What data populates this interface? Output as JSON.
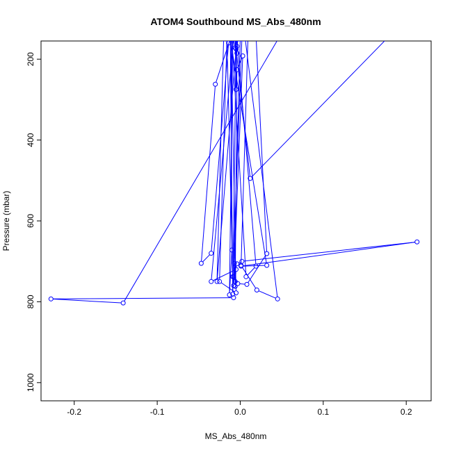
{
  "chart_data": {
    "type": "line",
    "title": "ATOM4 Southbound MS_Abs_480nm",
    "xlabel": "MS_Abs_480nm",
    "ylabel": "Pressure (mbar)",
    "xlim": [
      -0.24,
      0.23
    ],
    "ylim": [
      1045,
      155
    ],
    "y_reversed": true,
    "x_ticks": [
      -0.2,
      -0.1,
      0.0,
      0.1,
      0.2
    ],
    "x_tick_labels": [
      "-0.2",
      "-0.1",
      "0.0",
      "0.1",
      "0.2"
    ],
    "y_ticks": [
      200,
      400,
      600,
      800,
      1000
    ],
    "y_tick_labels": [
      "200",
      "400",
      "600",
      "800",
      "1000"
    ],
    "grid": false,
    "legend": "none",
    "series": [
      {
        "color": "#0000ff",
        "marker": "open-circle",
        "x": [
          -0.008,
          -0.228,
          -0.141,
          0.06,
          0.2,
          0.012,
          -0.005,
          -0.006,
          -0.012,
          -0.03,
          -0.047,
          -0.035,
          -0.014,
          -0.005,
          -0.01,
          0.007,
          0.019,
          -0.004,
          0.006,
          0.045,
          0.02,
          0.001,
          0.01,
          0.018,
          0.032,
          0.008,
          -0.003,
          -0.008,
          -0.004,
          0.002,
          0.213,
          0.001,
          0.032,
          -0.012,
          -0.008,
          -0.004,
          0.006,
          -0.002,
          0.002,
          -0.009,
          -0.016,
          -0.025,
          -0.005,
          -0.011,
          -0.01,
          -0.013,
          -0.009,
          -0.006,
          -0.02,
          -0.028,
          -0.004,
          0.0,
          -0.008,
          0.003,
          -0.004,
          -0.006,
          -0.007,
          -0.006,
          -0.005,
          -0.035,
          -0.008,
          -0.006,
          -0.005,
          -0.009,
          -0.012,
          -0.008,
          -0.006,
          -0.005,
          -0.004,
          -0.004,
          -0.003
        ],
        "y": [
          790,
          793,
          803,
          100,
          100,
          495,
          175,
          150,
          150,
          262,
          705,
          680,
          160,
          150,
          150,
          738,
          712,
          150,
          150,
          793,
          771,
          710,
          100,
          100,
          681,
          757,
          755,
          738,
          706,
          700,
          652,
          712,
          710,
          150,
          100,
          150,
          150,
          150,
          150,
          738,
          150,
          750,
          778,
          150,
          672,
          783,
          150,
          100,
          150,
          750,
          150,
          150,
          760,
          192,
          226,
          762,
          705,
          750,
          720,
          750,
          150,
          172,
          150,
          781,
          150,
          150,
          150,
          275,
          168,
          185,
          150
        ]
      }
    ]
  }
}
